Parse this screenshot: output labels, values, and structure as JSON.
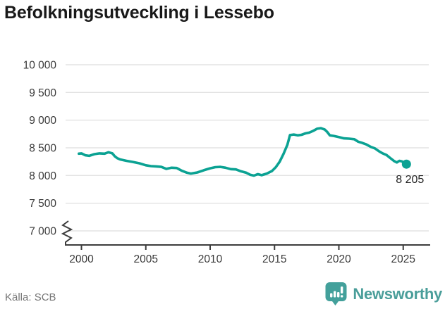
{
  "title": "Befolkningsutveckling i Lessebo",
  "source": "Källa: SCB",
  "branding": {
    "name": "Newsworthy"
  },
  "chart_data": {
    "type": "line",
    "title": "Befolkningsutveckling i Lessebo",
    "xlabel": "",
    "ylabel": "",
    "legend": "none",
    "grid": true,
    "axis_break_at_bottom": true,
    "xlim": [
      1999.5,
      2026
    ],
    "ylim": [
      7000,
      10000
    ],
    "x_ticks": [
      2000,
      2005,
      2010,
      2015,
      2020,
      2025
    ],
    "y_ticks": [
      {
        "value": 10000,
        "label": "10 000"
      },
      {
        "value": 9500,
        "label": "9 500"
      },
      {
        "value": 9000,
        "label": "9 000"
      },
      {
        "value": 8500,
        "label": "8 500"
      },
      {
        "value": 8000,
        "label": "8 000"
      },
      {
        "value": 7500,
        "label": "7 500"
      },
      {
        "value": 7000,
        "label": "7 000"
      }
    ],
    "end_label": "8 205",
    "end_value": 8205,
    "colors": {
      "line": "#0ba293",
      "grid": "#e3e3e3",
      "axis": "#3d3d3d",
      "brand": "#43a09b"
    },
    "series": [
      {
        "name": "Lessebo",
        "points": [
          [
            1999.8,
            8395
          ],
          [
            2000.0,
            8400
          ],
          [
            2000.3,
            8365
          ],
          [
            2000.6,
            8355
          ],
          [
            2001.0,
            8385
          ],
          [
            2001.4,
            8400
          ],
          [
            2001.8,
            8395
          ],
          [
            2002.1,
            8420
          ],
          [
            2002.4,
            8400
          ],
          [
            2002.6,
            8345
          ],
          [
            2002.8,
            8310
          ],
          [
            2003.0,
            8290
          ],
          [
            2003.5,
            8265
          ],
          [
            2004.0,
            8245
          ],
          [
            2004.5,
            8220
          ],
          [
            2005.0,
            8185
          ],
          [
            2005.4,
            8170
          ],
          [
            2005.8,
            8165
          ],
          [
            2006.2,
            8155
          ],
          [
            2006.6,
            8120
          ],
          [
            2007.0,
            8140
          ],
          [
            2007.4,
            8135
          ],
          [
            2007.8,
            8085
          ],
          [
            2008.2,
            8050
          ],
          [
            2008.5,
            8035
          ],
          [
            2009.0,
            8055
          ],
          [
            2009.5,
            8095
          ],
          [
            2010.0,
            8130
          ],
          [
            2010.4,
            8150
          ],
          [
            2010.8,
            8155
          ],
          [
            2011.2,
            8140
          ],
          [
            2011.6,
            8115
          ],
          [
            2012.0,
            8110
          ],
          [
            2012.4,
            8075
          ],
          [
            2012.8,
            8050
          ],
          [
            2013.1,
            8015
          ],
          [
            2013.4,
            7998
          ],
          [
            2013.7,
            8025
          ],
          [
            2014.0,
            8005
          ],
          [
            2014.4,
            8035
          ],
          [
            2014.8,
            8080
          ],
          [
            2015.1,
            8150
          ],
          [
            2015.4,
            8250
          ],
          [
            2015.7,
            8390
          ],
          [
            2016.0,
            8555
          ],
          [
            2016.2,
            8730
          ],
          [
            2016.5,
            8740
          ],
          [
            2016.8,
            8725
          ],
          [
            2017.1,
            8735
          ],
          [
            2017.4,
            8760
          ],
          [
            2017.7,
            8775
          ],
          [
            2018.0,
            8805
          ],
          [
            2018.3,
            8845
          ],
          [
            2018.6,
            8855
          ],
          [
            2018.9,
            8830
          ],
          [
            2019.1,
            8785
          ],
          [
            2019.3,
            8725
          ],
          [
            2019.6,
            8715
          ],
          [
            2020.0,
            8695
          ],
          [
            2020.4,
            8670
          ],
          [
            2020.8,
            8665
          ],
          [
            2021.2,
            8655
          ],
          [
            2021.5,
            8610
          ],
          [
            2021.8,
            8590
          ],
          [
            2022.1,
            8565
          ],
          [
            2022.5,
            8515
          ],
          [
            2022.8,
            8490
          ],
          [
            2023.1,
            8440
          ],
          [
            2023.4,
            8400
          ],
          [
            2023.7,
            8370
          ],
          [
            2024.0,
            8315
          ],
          [
            2024.3,
            8260
          ],
          [
            2024.5,
            8235
          ],
          [
            2024.7,
            8265
          ],
          [
            2024.9,
            8255
          ],
          [
            2025.1,
            8225
          ],
          [
            2025.25,
            8205
          ]
        ]
      }
    ]
  }
}
